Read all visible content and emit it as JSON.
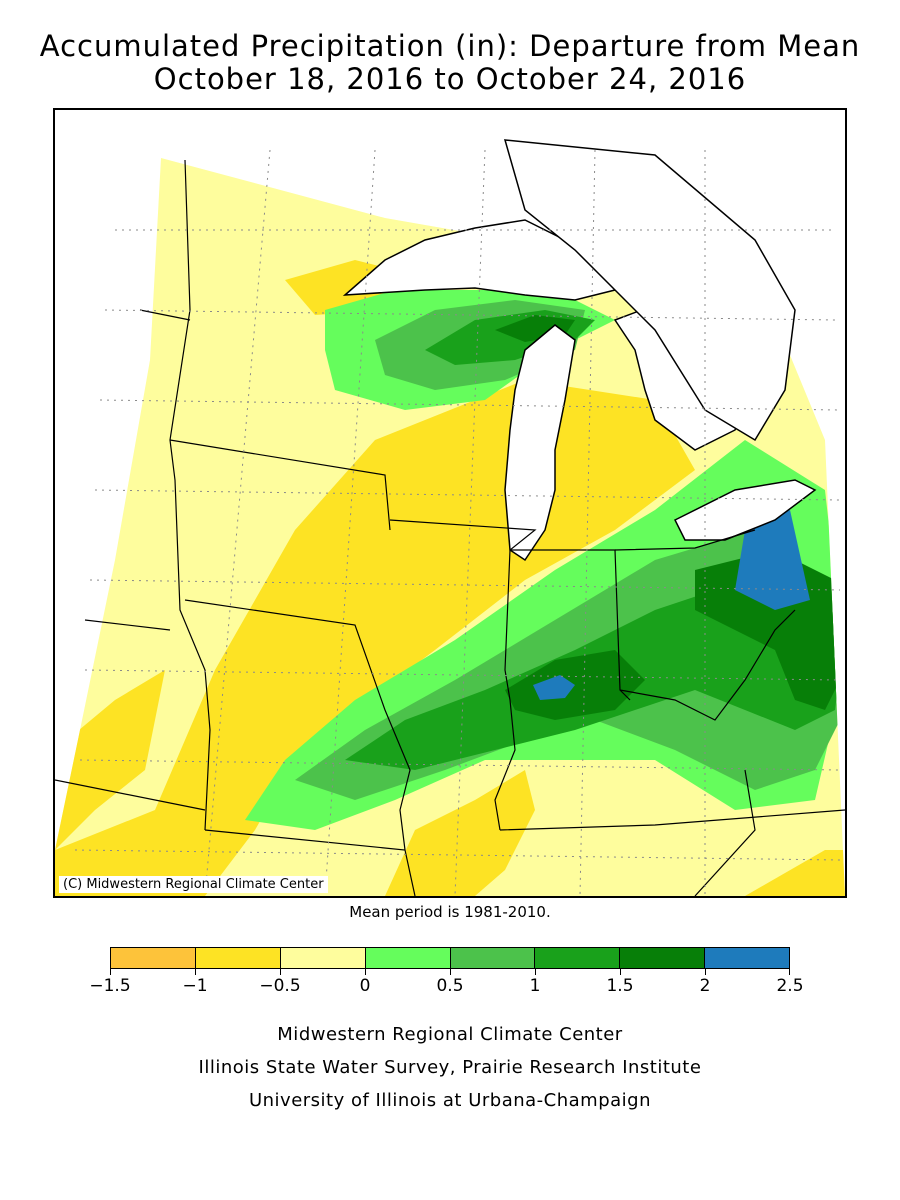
{
  "title_line1": "Accumulated Precipitation (in): Departure from Mean",
  "title_line2": "October 18, 2016 to October 24, 2016",
  "copyright": "(C) Midwestern Regional Climate Center",
  "mean_period": "Mean period is 1981-2010.",
  "legend": {
    "units": "in",
    "bins": [
      {
        "min": -1.5,
        "max": -1.0,
        "color": "#FDC33A"
      },
      {
        "min": -1.0,
        "max": -0.5,
        "color": "#FDE324"
      },
      {
        "min": -0.5,
        "max": 0.0,
        "color": "#FEFD9D"
      },
      {
        "min": 0.0,
        "max": 0.5,
        "color": "#65FD5C"
      },
      {
        "min": 0.5,
        "max": 1.0,
        "color": "#4CC24B"
      },
      {
        "min": 1.0,
        "max": 1.5,
        "color": "#19A11B"
      },
      {
        "min": 1.5,
        "max": 2.0,
        "color": "#077F08"
      },
      {
        "min": 2.0,
        "max": 2.5,
        "color": "#1E7BBC"
      }
    ],
    "tick_labels": [
      "-1.5",
      "-1",
      "-0.5",
      "0",
      "0.5",
      "1",
      "1.5",
      "2",
      "2.5"
    ]
  },
  "credits": [
    "Midwestern Regional Climate Center",
    "Illinois State Water Survey, Prairie Research Institute",
    "University of Illinois at Urbana-Champaign"
  ]
}
